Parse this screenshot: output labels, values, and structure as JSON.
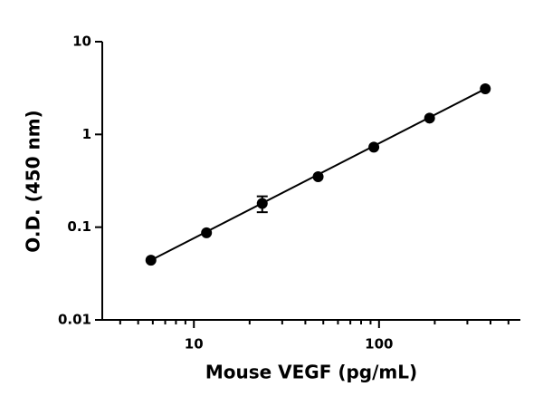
{
  "chart_data": {
    "type": "scatter",
    "x_label": "Mouse VEGF (pg/mL)",
    "y_label": "O.D. (450 nm)",
    "x": [
      5.86,
      11.7,
      23.4,
      46.9,
      93.75,
      187.5,
      375
    ],
    "values": [
      0.044,
      0.087,
      0.18,
      0.35,
      0.73,
      1.5,
      3.1
    ],
    "errors": [
      null,
      null,
      0.035,
      null,
      null,
      null,
      null
    ],
    "fit": {
      "x": [
        5.86,
        375
      ],
      "values": [
        0.044,
        3.1
      ]
    },
    "color": "#000000",
    "x_log": true,
    "y_log": true,
    "xlim": [
      3.2,
      580
    ],
    "ylim": [
      0.01,
      10
    ],
    "xticks": [
      10,
      100
    ],
    "yticks": [
      0.01,
      0.1,
      1,
      10
    ],
    "xminorticks": [
      4,
      5,
      6,
      7,
      8,
      9,
      20,
      30,
      40,
      50,
      60,
      70,
      80,
      90,
      200,
      300,
      400,
      500
    ]
  }
}
